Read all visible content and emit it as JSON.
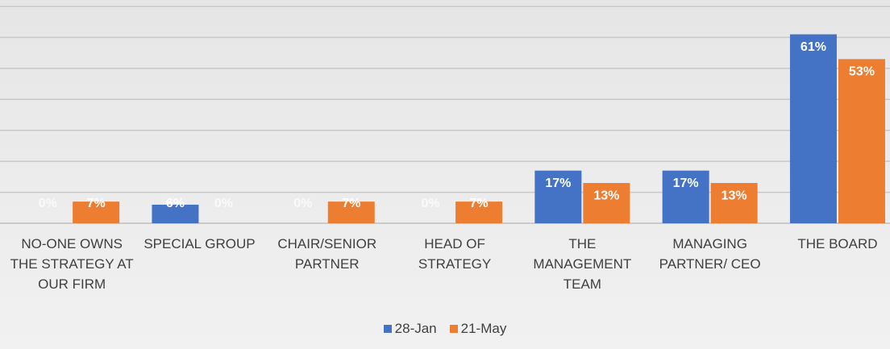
{
  "chart_data": {
    "type": "bar",
    "categories": [
      "NO-ONE OWNS THE STRATEGY AT OUR FIRM",
      "SPECIAL GROUP",
      "CHAIR/SENIOR PARTNER",
      "HEAD OF STRATEGY",
      "THE MANAGEMENT TEAM",
      "MANAGING PARTNER/ CEO",
      "THE BOARD"
    ],
    "series": [
      {
        "name": "28-Jan",
        "color": "#4472c4",
        "values": [
          0,
          6,
          0,
          0,
          17,
          17,
          61
        ],
        "value_labels": [
          "0%",
          "6%",
          "0%",
          "0%",
          "17%",
          "17%",
          "61%"
        ]
      },
      {
        "name": "21-May",
        "color": "#ed7d31",
        "values": [
          7,
          0,
          7,
          7,
          13,
          13,
          53
        ],
        "value_labels": [
          "7%",
          "0%",
          "7%",
          "7%",
          "13%",
          "13%",
          "53%"
        ]
      }
    ],
    "ylim": [
      0,
      70
    ],
    "yticks": [
      0,
      10,
      20,
      30,
      40,
      50,
      60,
      70
    ],
    "grid": true,
    "legend": "bottom"
  }
}
